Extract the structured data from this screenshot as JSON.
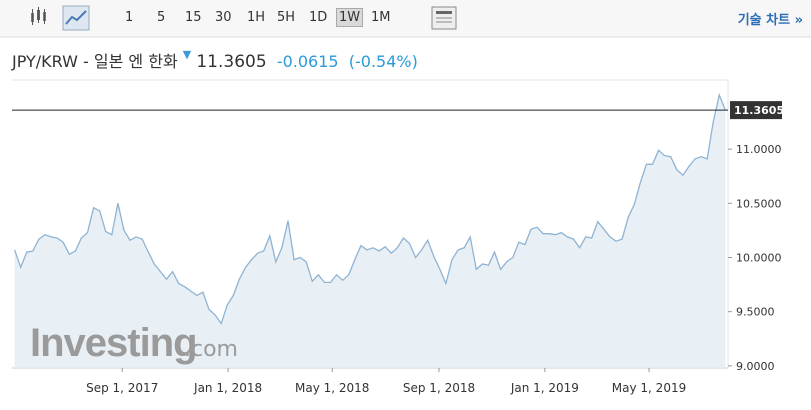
{
  "toolbar": {
    "intervals": [
      "1",
      "5",
      "15",
      "30",
      "1H",
      "5H",
      "1D",
      "1W",
      "1M"
    ],
    "selected": 7,
    "link": "기술 차트 »"
  },
  "header": {
    "pair": "JPY/KRW - 일본 엔 한화",
    "change": "-0.0615",
    "change_pct": "(-0.54%)"
  },
  "watermark": {
    "brand": "Investing",
    "domain": ".com"
  },
  "chart_data": {
    "type": "area",
    "color": "#8fb3d3",
    "fill": "#e4edf5",
    "x": [
      "2017-04-30",
      "2017-05-07",
      "2017-05-14",
      "2017-05-21",
      "2017-05-28",
      "2017-06-04",
      "2017-06-11",
      "2017-06-18",
      "2017-06-25",
      "2017-07-02",
      "2017-07-09",
      "2017-07-16",
      "2017-07-23",
      "2017-07-30",
      "2017-08-06",
      "2017-08-13",
      "2017-08-20",
      "2017-08-27",
      "2017-09-03",
      "2017-09-10",
      "2017-09-17",
      "2017-09-24",
      "2017-10-01",
      "2017-10-08",
      "2017-10-15",
      "2017-10-22",
      "2017-10-29",
      "2017-11-05",
      "2017-11-12",
      "2017-11-19",
      "2017-11-26",
      "2017-12-03",
      "2017-12-10",
      "2017-12-17",
      "2017-12-24",
      "2017-12-31",
      "2018-01-07",
      "2018-01-14",
      "2018-01-21",
      "2018-01-28",
      "2018-02-04",
      "2018-02-11",
      "2018-02-18",
      "2018-02-25",
      "2018-03-04",
      "2018-03-11",
      "2018-03-18",
      "2018-03-25",
      "2018-04-01",
      "2018-04-08",
      "2018-04-15",
      "2018-04-22",
      "2018-04-29",
      "2018-05-06",
      "2018-05-13",
      "2018-05-20",
      "2018-05-27",
      "2018-06-03",
      "2018-06-10",
      "2018-06-17",
      "2018-06-24",
      "2018-07-01",
      "2018-07-08",
      "2018-07-15",
      "2018-07-22",
      "2018-07-29",
      "2018-08-05",
      "2018-08-12",
      "2018-08-19",
      "2018-08-26",
      "2018-09-02",
      "2018-09-09",
      "2018-09-16",
      "2018-09-23",
      "2018-09-30",
      "2018-10-07",
      "2018-10-14",
      "2018-10-21",
      "2018-10-28",
      "2018-11-04",
      "2018-11-11",
      "2018-11-18",
      "2018-11-25",
      "2018-12-02",
      "2018-12-09",
      "2018-12-16",
      "2018-12-23",
      "2018-12-30",
      "2019-01-06",
      "2019-01-13",
      "2019-01-20",
      "2019-01-27",
      "2019-02-03",
      "2019-02-10",
      "2019-02-17",
      "2019-02-24",
      "2019-03-03",
      "2019-03-10",
      "2019-03-17",
      "2019-03-24",
      "2019-03-31",
      "2019-04-07",
      "2019-04-14",
      "2019-04-21",
      "2019-04-28",
      "2019-05-05",
      "2019-05-12",
      "2019-05-19",
      "2019-05-26",
      "2019-06-02",
      "2019-06-09",
      "2019-06-16",
      "2019-06-23",
      "2019-06-30",
      "2019-07-07",
      "2019-07-14",
      "2019-07-21",
      "2019-07-28"
    ],
    "values": [
      10.07,
      9.91,
      10.05,
      10.06,
      10.17,
      10.21,
      10.19,
      10.18,
      10.14,
      10.03,
      10.06,
      10.18,
      10.23,
      10.46,
      10.43,
      10.24,
      10.21,
      10.5,
      10.25,
      10.16,
      10.19,
      10.17,
      10.05,
      9.94,
      9.87,
      9.8,
      9.87,
      9.76,
      9.73,
      9.69,
      9.65,
      9.68,
      9.52,
      9.47,
      9.39,
      9.56,
      9.65,
      9.8,
      9.91,
      9.98,
      10.04,
      10.06,
      10.2,
      9.96,
      10.09,
      10.34,
      9.98,
      10.0,
      9.96,
      9.78,
      9.84,
      9.77,
      9.77,
      9.84,
      9.79,
      9.84,
      9.98,
      10.11,
      10.07,
      10.09,
      10.06,
      10.1,
      10.04,
      10.09,
      10.18,
      10.13,
      10.0,
      10.07,
      10.16,
      10.01,
      9.89,
      9.76,
      9.98,
      10.07,
      10.09,
      10.19,
      9.89,
      9.94,
      9.93,
      10.05,
      9.89,
      9.96,
      10.0,
      10.14,
      10.12,
      10.26,
      10.28,
      10.22,
      10.22,
      10.21,
      10.23,
      10.19,
      10.17,
      10.09,
      10.19,
      10.18,
      10.33,
      10.26,
      10.19,
      10.15,
      10.17,
      10.37,
      10.49,
      10.69,
      10.86,
      10.86,
      10.99,
      10.94,
      10.93,
      10.81,
      10.76,
      10.84,
      10.91,
      10.93,
      10.91,
      11.25,
      11.5,
      11.3605
    ],
    "last_price": 11.3605,
    "xlim": [
      "2017-04-27",
      "2019-07-31"
    ],
    "xticks": [
      {
        "value": "2017-09-01",
        "label": "Sep 1, 2017"
      },
      {
        "value": "2018-01-01",
        "label": "Jan 1, 2018"
      },
      {
        "value": "2018-05-01",
        "label": "May 1, 2018"
      },
      {
        "value": "2018-09-01",
        "label": "Sep 1, 2018"
      },
      {
        "value": "2019-01-01",
        "label": "Jan 1, 2019"
      },
      {
        "value": "2019-05-01",
        "label": "May 1, 2019"
      }
    ],
    "ylim": [
      8.98,
      11.62
    ],
    "yticks": [
      {
        "value": 9,
        "label": "9.0000"
      },
      {
        "value": 9.5,
        "label": "9.5000"
      },
      {
        "value": 10,
        "label": "10.0000"
      },
      {
        "value": 10.5,
        "label": "10.5000"
      },
      {
        "value": 11,
        "label": "11.0000"
      }
    ]
  }
}
